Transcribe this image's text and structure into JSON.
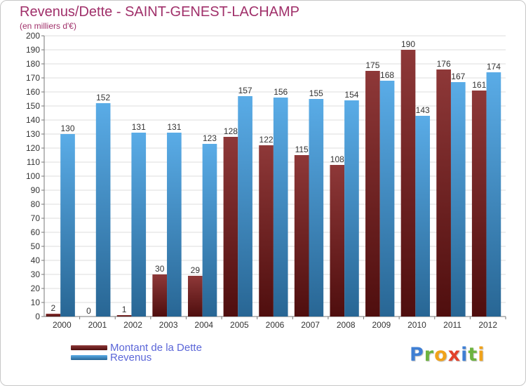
{
  "chart_data": {
    "type": "bar",
    "title": "Revenus/Dette - SAINT-GENEST-LACHAMP",
    "subtitle": "(en milliers d'€)",
    "categories": [
      "2000",
      "2001",
      "2002",
      "2003",
      "2004",
      "2005",
      "2006",
      "2007",
      "2008",
      "2009",
      "2010",
      "2011",
      "2012"
    ],
    "series": [
      {
        "name": "Montant de la Dette",
        "color": "#7a1515",
        "values": [
          2,
          0,
          1,
          30,
          29,
          128,
          122,
          115,
          108,
          175,
          190,
          176,
          161
        ]
      },
      {
        "name": "Revenus",
        "color": "#3d9de3",
        "values": [
          130,
          152,
          131,
          131,
          123,
          157,
          156,
          155,
          154,
          168,
          143,
          167,
          174
        ]
      }
    ],
    "ylim": [
      0,
      200
    ],
    "yticks": [
      0,
      10,
      20,
      30,
      40,
      50,
      60,
      70,
      80,
      90,
      100,
      110,
      120,
      130,
      140,
      150,
      160,
      170,
      180,
      190,
      200
    ],
    "grid": true,
    "legend_position": "bottom-left"
  },
  "logo": {
    "letters": [
      {
        "ch": "P",
        "color": "#3f7fd4"
      },
      {
        "ch": "r",
        "color": "#6cb33f"
      },
      {
        "ch": "o",
        "color": "#f0a21a"
      },
      {
        "ch": "x",
        "color": "#e2402a"
      },
      {
        "ch": "i",
        "color": "#3f7fd4"
      },
      {
        "ch": "t",
        "color": "#6cb33f"
      },
      {
        "ch": "i",
        "color": "#f0a21a"
      }
    ]
  }
}
